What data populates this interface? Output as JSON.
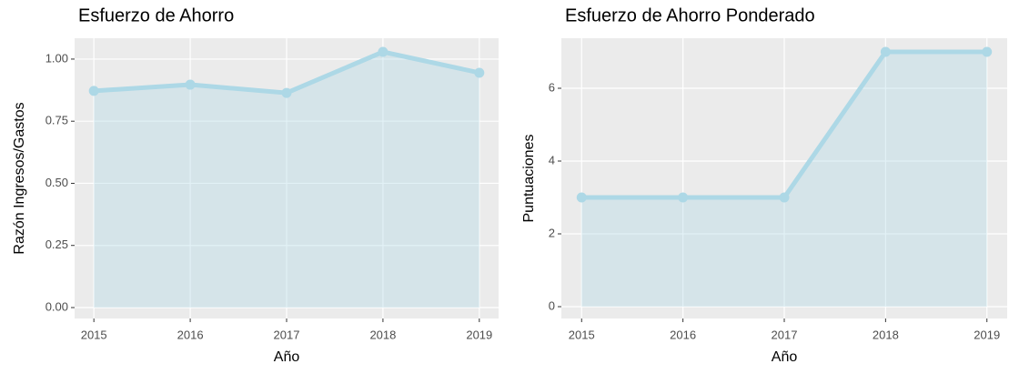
{
  "chart_data": [
    {
      "type": "area-line",
      "title": "Esfuerzo de Ahorro",
      "x_label": "Año",
      "y_label": "Razón Ingresos/Gastos",
      "x": [
        2015,
        2016,
        2017,
        2018,
        2019
      ],
      "values": [
        0.872,
        0.897,
        0.864,
        1.029,
        0.945
      ],
      "color": "#add8e6",
      "grid": true,
      "xlim": [
        2014.8,
        2019.2
      ],
      "xticks": [
        2015,
        2016,
        2017,
        2018,
        2019
      ],
      "ylim": [
        -0.044,
        1.084
      ],
      "yticks": [
        {
          "value": 0,
          "label": "0.00"
        },
        {
          "value": 0.25,
          "label": "0.25"
        },
        {
          "value": 0.5,
          "label": "0.50"
        },
        {
          "value": 0.75,
          "label": "0.75"
        },
        {
          "value": 1,
          "label": "1.00"
        }
      ]
    },
    {
      "type": "area-line",
      "title": "Esfuerzo de Ahorro Ponderado",
      "x_label": "Año",
      "y_label": "Puntuaciones",
      "x": [
        2015,
        2016,
        2017,
        2018,
        2019
      ],
      "values": [
        3,
        3,
        3,
        7,
        7
      ],
      "color": "#add8e6",
      "grid": true,
      "xlim": [
        2014.8,
        2019.2
      ],
      "xticks": [
        2015,
        2016,
        2017,
        2018,
        2019
      ],
      "ylim": [
        -0.325,
        7.375
      ],
      "yticks": [
        0,
        2,
        4,
        6
      ]
    }
  ]
}
